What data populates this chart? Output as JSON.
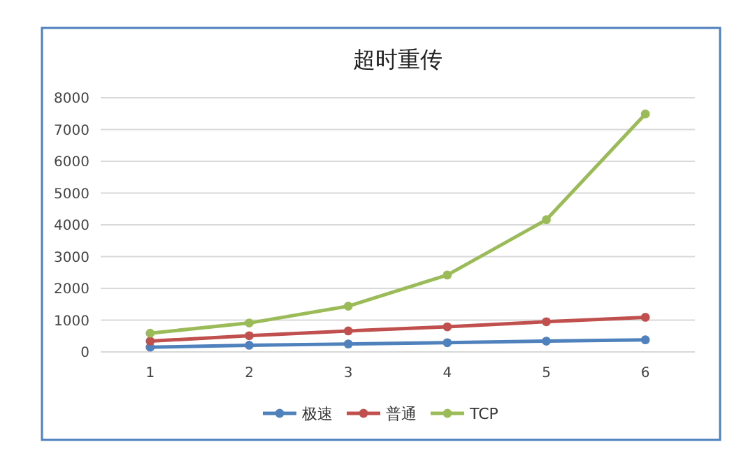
{
  "chart_data": {
    "type": "line",
    "title": "超时重传",
    "categories": [
      "1",
      "2",
      "3",
      "4",
      "5",
      "6"
    ],
    "series": [
      {
        "name": "极速",
        "color": "#4f81bd",
        "values": [
          150,
          210,
          250,
          290,
          340,
          380
        ]
      },
      {
        "name": "普通",
        "color": "#c0504d",
        "values": [
          340,
          510,
          660,
          790,
          950,
          1090
        ]
      },
      {
        "name": "TCP",
        "color": "#9bbb59",
        "values": [
          590,
          910,
          1440,
          2420,
          4160,
          7490
        ]
      }
    ],
    "ylim": [
      0,
      8000
    ],
    "yticks": [
      0,
      1000,
      2000,
      3000,
      4000,
      5000,
      6000,
      7000,
      8000
    ],
    "grid": "y",
    "legend": "bottom",
    "marker": "circle",
    "line_style": "solid"
  }
}
